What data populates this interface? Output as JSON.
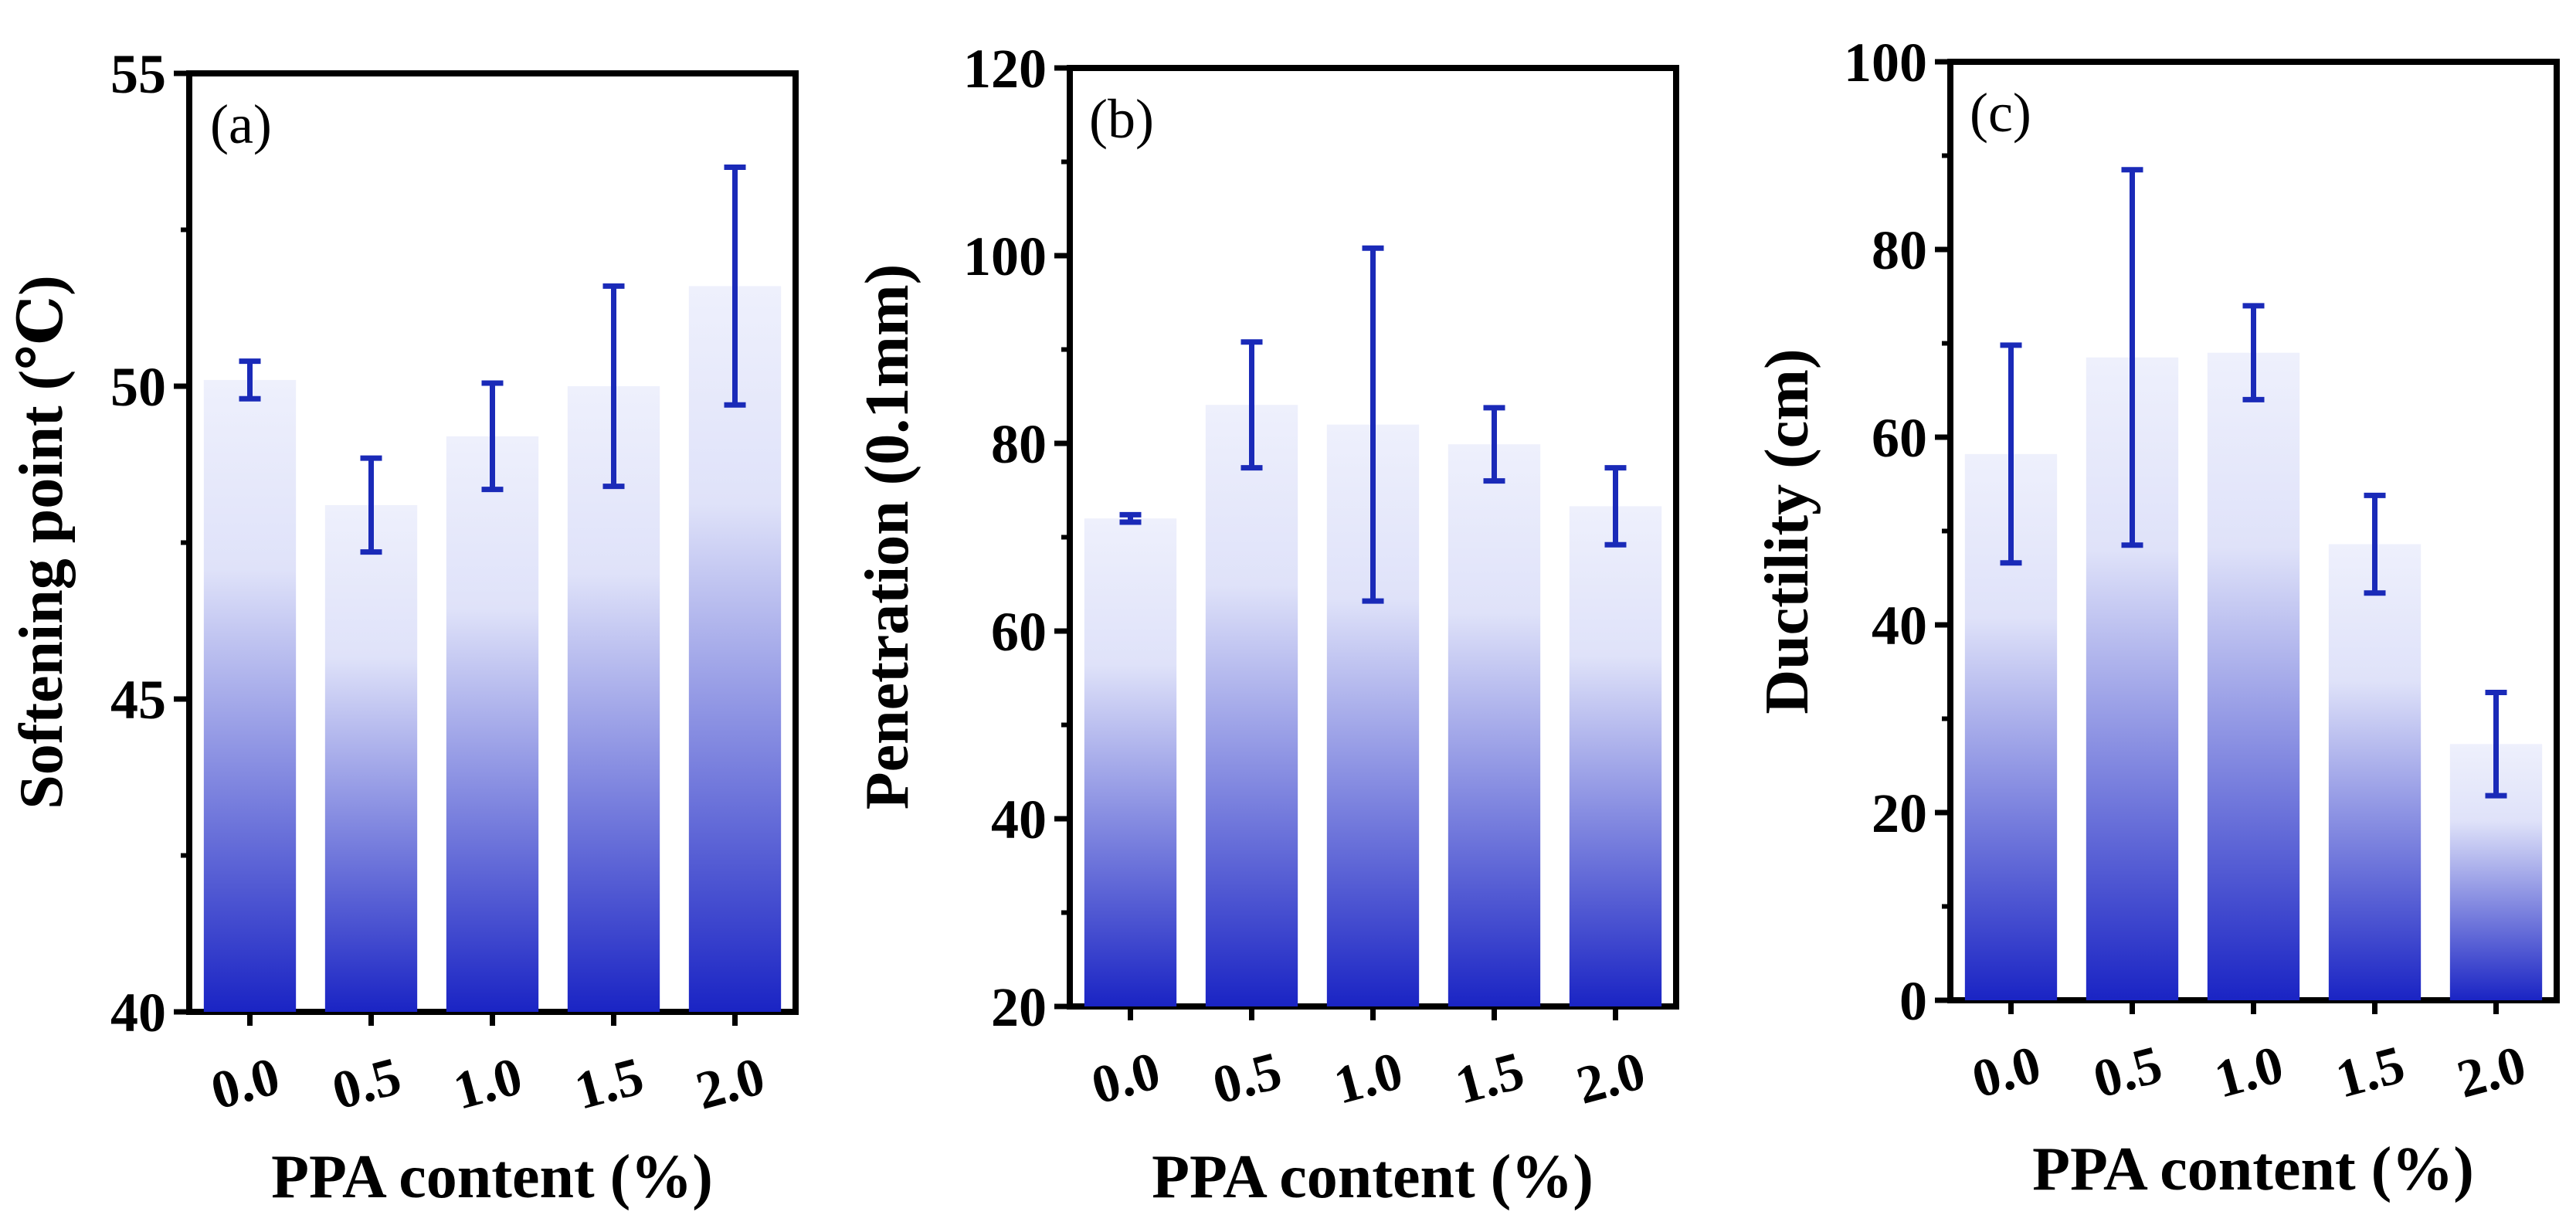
{
  "colors": {
    "bar_top": "#eef0fc",
    "bar_bottom": "#1a24c4",
    "error_bar": "#1a2ab8",
    "axis": "#000000"
  },
  "chart_data": [
    {
      "type": "bar",
      "panel_label": "(a)",
      "categories": [
        "0.0",
        "0.5",
        "1.0",
        "1.5",
        "2.0"
      ],
      "values": [
        50.1,
        48.1,
        49.2,
        50.0,
        51.6
      ],
      "errors": [
        0.3,
        0.75,
        0.85,
        1.6,
        1.9
      ],
      "xlabel": "PPA content (%)",
      "ylabel": "Softening point (℃)",
      "ylim": [
        40,
        55
      ],
      "yticks": [
        40,
        45,
        50,
        55
      ],
      "ytick_labels": [
        "40",
        "45",
        "50",
        "55"
      ],
      "minor_step": 2.5
    },
    {
      "type": "bar",
      "panel_label": "(b)",
      "categories": [
        "0.0",
        "0.5",
        "1.0",
        "1.5",
        "2.0"
      ],
      "values": [
        72.0,
        84.1,
        82.0,
        79.9,
        73.3
      ],
      "errors": [
        0.4,
        6.7,
        18.8,
        3.9,
        4.1
      ],
      "xlabel": "PPA content (%)",
      "ylabel": "Penetration (0.1mm)",
      "ylim": [
        20,
        120
      ],
      "yticks": [
        20,
        40,
        60,
        80,
        100,
        120
      ],
      "ytick_labels": [
        "20",
        "40",
        "60",
        "80",
        "100",
        "120"
      ],
      "minor_step": 10
    },
    {
      "type": "bar",
      "panel_label": "(c)",
      "categories": [
        "0.0",
        "0.5",
        "1.0",
        "1.5",
        "2.0"
      ],
      "values": [
        58.2,
        68.5,
        69.0,
        48.6,
        27.3
      ],
      "errors": [
        11.6,
        20.0,
        5.0,
        5.2,
        5.5
      ],
      "xlabel": "PPA content (%)",
      "ylabel": "Ductility (cm)",
      "ylim": [
        0,
        100
      ],
      "yticks": [
        0,
        20,
        40,
        60,
        80,
        100
      ],
      "ytick_labels": [
        "0",
        "20",
        "40",
        "60",
        "80",
        "100"
      ],
      "minor_step": 10
    }
  ]
}
